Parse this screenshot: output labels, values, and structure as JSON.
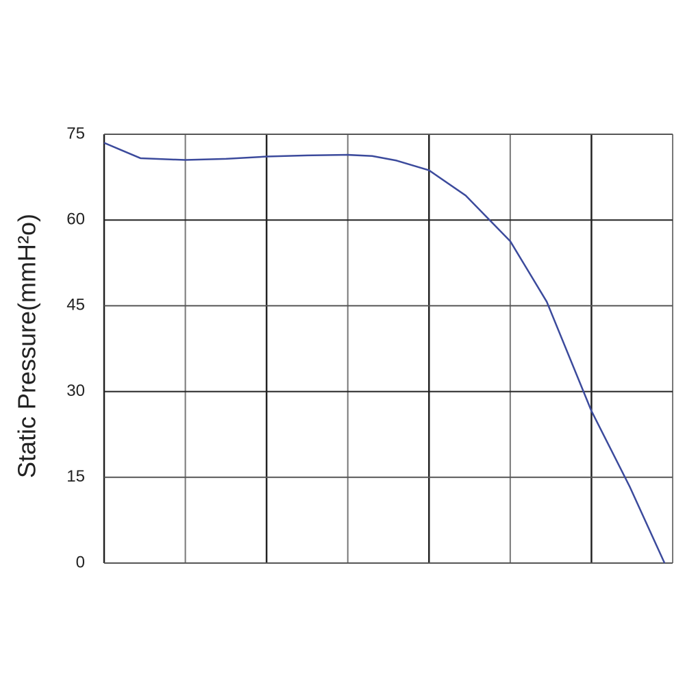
{
  "chart_data": {
    "type": "line",
    "y_label": "Static Pressure(mmH²o)",
    "x": [
      0,
      0.2,
      0.45,
      1,
      1.5,
      2,
      2.5,
      3,
      3.3,
      3.6,
      4,
      4.45,
      5,
      5.45,
      6,
      6.47,
      6.9
    ],
    "series": [
      {
        "name": null,
        "color": "#3b4a9c",
        "values": [
          73.5,
          72.3,
          70.8,
          70.5,
          70.7,
          71.1,
          71.3,
          71.4,
          71.2,
          70.4,
          68.7,
          64.3,
          56.3,
          45.7,
          26.6,
          13.4,
          0
        ]
      }
    ],
    "xlim": [
      0,
      7
    ],
    "ylim": [
      0,
      75
    ],
    "yticks": [
      0,
      15,
      30,
      45,
      60,
      75
    ],
    "grid": true
  }
}
